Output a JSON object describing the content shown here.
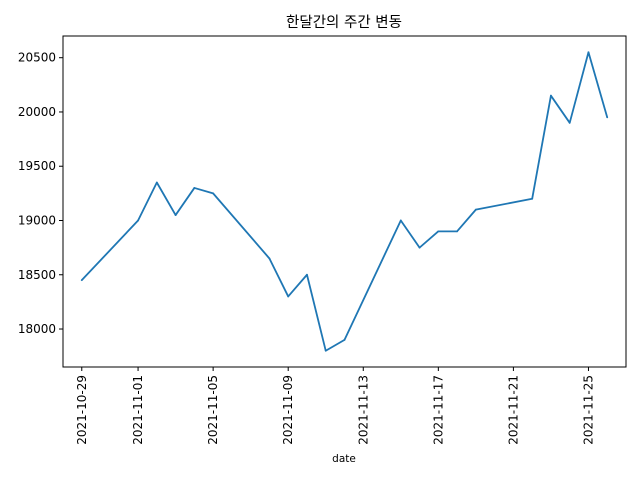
{
  "chart_data": {
    "type": "line",
    "title": "한달간의 주간 변동",
    "xlabel": "date",
    "ylabel": "",
    "grid": false,
    "line_color": "#1f77b4",
    "xlim": [
      "2021-10-28",
      "2021-11-27"
    ],
    "ylim": [
      17650,
      20700
    ],
    "x_ticks": [
      "2021-10-29",
      "2021-11-01",
      "2021-11-05",
      "2021-11-09",
      "2021-11-13",
      "2021-11-17",
      "2021-11-21",
      "2021-11-25"
    ],
    "y_ticks": [
      18000,
      18500,
      19000,
      19500,
      20000,
      20500
    ],
    "series": [
      {
        "points": [
          {
            "x": "2021-10-29",
            "y": 18450
          },
          {
            "x": "2021-11-01",
            "y": 19000
          },
          {
            "x": "2021-11-02",
            "y": 19350
          },
          {
            "x": "2021-11-03",
            "y": 19050
          },
          {
            "x": "2021-11-04",
            "y": 19300
          },
          {
            "x": "2021-11-05",
            "y": 19250
          },
          {
            "x": "2021-11-08",
            "y": 18650
          },
          {
            "x": "2021-11-09",
            "y": 18300
          },
          {
            "x": "2021-11-10",
            "y": 18500
          },
          {
            "x": "2021-11-11",
            "y": 17800
          },
          {
            "x": "2021-11-12",
            "y": 17900
          },
          {
            "x": "2021-11-15",
            "y": 19000
          },
          {
            "x": "2021-11-16",
            "y": 18750
          },
          {
            "x": "2021-11-17",
            "y": 18900
          },
          {
            "x": "2021-11-18",
            "y": 18900
          },
          {
            "x": "2021-11-19",
            "y": 19100
          },
          {
            "x": "2021-11-22",
            "y": 19200
          },
          {
            "x": "2021-11-23",
            "y": 20150
          },
          {
            "x": "2021-11-24",
            "y": 19900
          },
          {
            "x": "2021-11-25",
            "y": 20550
          },
          {
            "x": "2021-11-26",
            "y": 19950
          }
        ]
      }
    ]
  }
}
